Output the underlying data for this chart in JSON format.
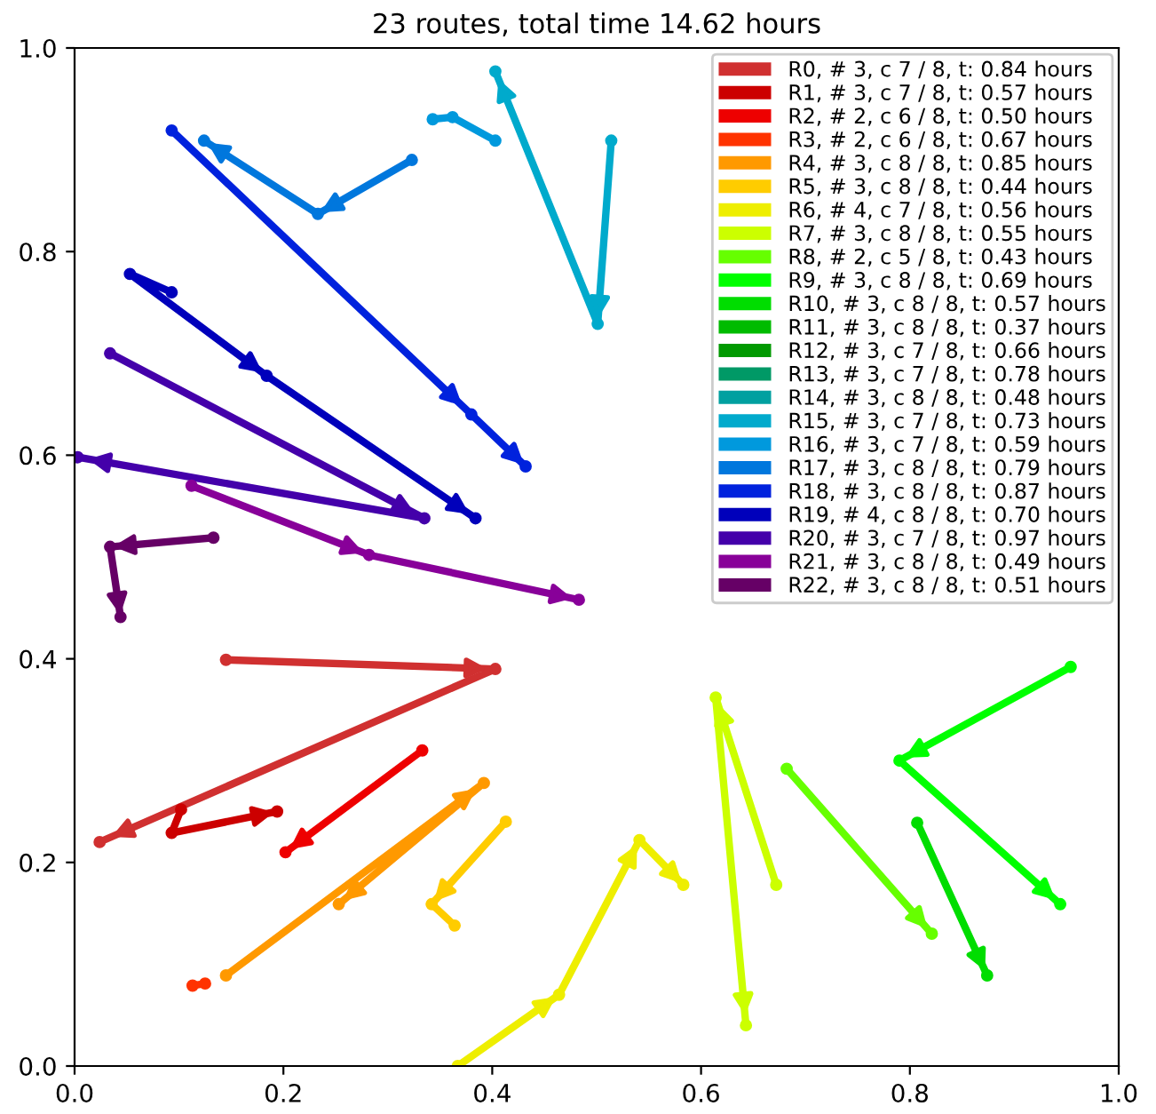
{
  "chart_data": {
    "type": "line",
    "title": "23 routes, total time 14.62 hours",
    "xlim": [
      0,
      1
    ],
    "ylim": [
      0,
      1
    ],
    "xticks": [
      {
        "value": 0,
        "label": "0.0"
      },
      {
        "value": 0.2,
        "label": "0.2"
      },
      {
        "value": 0.4,
        "label": "0.4"
      },
      {
        "value": 0.6,
        "label": "0.6"
      },
      {
        "value": 0.8,
        "label": "0.8"
      },
      {
        "value": 1,
        "label": "1.0"
      }
    ],
    "yticks": [
      {
        "value": 0,
        "label": "0.0"
      },
      {
        "value": 0.2,
        "label": "0.2"
      },
      {
        "value": 0.4,
        "label": "0.4"
      },
      {
        "value": 0.6,
        "label": "0.6"
      },
      {
        "value": 0.8,
        "label": "0.8"
      },
      {
        "value": 1,
        "label": "1.0"
      }
    ],
    "grid": false,
    "legend": "top right",
    "marker": "circle",
    "line_style": "solid",
    "series": [
      {
        "name": "R0, # 3, c 7 / 8, t: 0.84 hours",
        "color": "#d03030",
        "x": [
          0.145,
          0.403,
          0.024
        ],
        "values": [
          0.399,
          0.39,
          0.22
        ]
      },
      {
        "name": "R1, # 3, c 7 / 8, t: 0.57 hours",
        "color": "#cc0000",
        "x": [
          0.102,
          0.093,
          0.194
        ],
        "values": [
          0.252,
          0.229,
          0.25
        ]
      },
      {
        "name": "R2, # 2, c 6 / 8, t: 0.50 hours",
        "color": "#ee0000",
        "x": [
          0.333,
          0.202
        ],
        "values": [
          0.31,
          0.21
        ]
      },
      {
        "name": "R3, # 2, c 6 / 8, t: 0.67 hours",
        "color": "#ff3300",
        "x": [
          0.125,
          0.113
        ],
        "values": [
          0.081,
          0.079
        ]
      },
      {
        "name": "R4, # 3, c 8 / 8, t: 0.85 hours",
        "color": "#ff9900",
        "x": [
          0.145,
          0.392,
          0.253
        ],
        "values": [
          0.089,
          0.278,
          0.159
        ]
      },
      {
        "name": "R5, # 3, c 8 / 8, t: 0.44 hours",
        "color": "#ffcc00",
        "x": [
          0.413,
          0.342,
          0.364
        ],
        "values": [
          0.24,
          0.159,
          0.138
        ]
      },
      {
        "name": "R6, # 4, c 7 / 8, t: 0.56 hours",
        "color": "#eeee00",
        "x": [
          0.367,
          0.464,
          0.541,
          0.583
        ],
        "values": [
          0.0,
          0.07,
          0.222,
          0.178
        ]
      },
      {
        "name": "R7, # 3, c 8 / 8, t: 0.55 hours",
        "color": "#ccff00",
        "x": [
          0.672,
          0.614,
          0.643
        ],
        "values": [
          0.178,
          0.362,
          0.04
        ]
      },
      {
        "name": "R8, # 2, c 5 / 8, t: 0.43 hours",
        "color": "#66ff00",
        "x": [
          0.682,
          0.821
        ],
        "values": [
          0.292,
          0.13
        ]
      },
      {
        "name": "R9, # 3, c 8 / 8, t: 0.69 hours",
        "color": "#00ff00",
        "x": [
          0.954,
          0.79,
          0.944
        ],
        "values": [
          0.392,
          0.3,
          0.159
        ]
      },
      {
        "name": "R10, # 3, c 8 / 8, t: 0.57 hours",
        "color": "#00dd00",
        "x": [
          null,
          0.807,
          0.874
        ],
        "values": [
          null,
          0.239,
          0.089
        ]
      },
      {
        "name": "R11, # 3, c 8 / 8, t: 0.37 hours",
        "color": "#00bb00",
        "x": [
          null,
          null,
          null
        ],
        "values": [
          null,
          null,
          null
        ]
      },
      {
        "name": "R12, # 3, c 7 / 8, t: 0.66 hours",
        "color": "#009900",
        "x": [
          null,
          null,
          null
        ],
        "values": [
          null,
          null,
          null
        ]
      },
      {
        "name": "R13, # 3, c 7 / 8, t: 0.78 hours",
        "color": "#009966",
        "x": [
          null,
          null,
          null
        ],
        "values": [
          null,
          null,
          null
        ]
      },
      {
        "name": "R14, # 3, c 8 / 8, t: 0.48 hours",
        "color": "#00a0a0",
        "x": [
          null,
          null,
          null
        ],
        "values": [
          null,
          null,
          null
        ]
      },
      {
        "name": "R15, # 3, c 7 / 8, t: 0.73 hours",
        "color": "#00aacc",
        "x": [
          0.514,
          0.501,
          0.403
        ],
        "values": [
          0.909,
          0.729,
          0.977
        ]
      },
      {
        "name": "R16, # 3, c 7 / 8, t: 0.59 hours",
        "color": "#0099dd",
        "x": [
          0.343,
          0.362,
          0.403
        ],
        "values": [
          0.93,
          0.932,
          0.909
        ]
      },
      {
        "name": "R17, # 3, c 8 / 8, t: 0.79 hours",
        "color": "#0077dd",
        "x": [
          0.323,
          0.233,
          0.124
        ],
        "values": [
          0.89,
          0.837,
          0.909
        ]
      },
      {
        "name": "R18, # 3, c 8 / 8, t: 0.87 hours",
        "color": "#0022dd",
        "x": [
          0.093,
          0.38,
          0.432
        ],
        "values": [
          0.919,
          0.64,
          0.589
        ]
      },
      {
        "name": "R19, # 4, c 8 / 8, t: 0.70 hours",
        "color": "#0000bb",
        "x": [
          0.093,
          0.053,
          0.184,
          0.384
        ],
        "values": [
          0.76,
          0.778,
          0.678,
          0.538
        ]
      },
      {
        "name": "R20, # 3, c 7 / 8, t: 0.97 hours",
        "color": "#4400aa",
        "x": [
          0.034,
          0.335,
          0.003
        ],
        "values": [
          0.7,
          0.538,
          0.598
        ]
      },
      {
        "name": "R21, # 3, c 8 / 8, t: 0.49 hours",
        "color": "#880099",
        "x": [
          0.112,
          0.282,
          0.483
        ],
        "values": [
          0.57,
          0.502,
          0.458
        ]
      },
      {
        "name": "R22, # 3, c 8 / 8, t: 0.51 hours",
        "color": "#660066",
        "x": [
          0.133,
          0.034,
          0.044
        ],
        "values": [
          0.519,
          0.51,
          0.441
        ]
      }
    ]
  }
}
